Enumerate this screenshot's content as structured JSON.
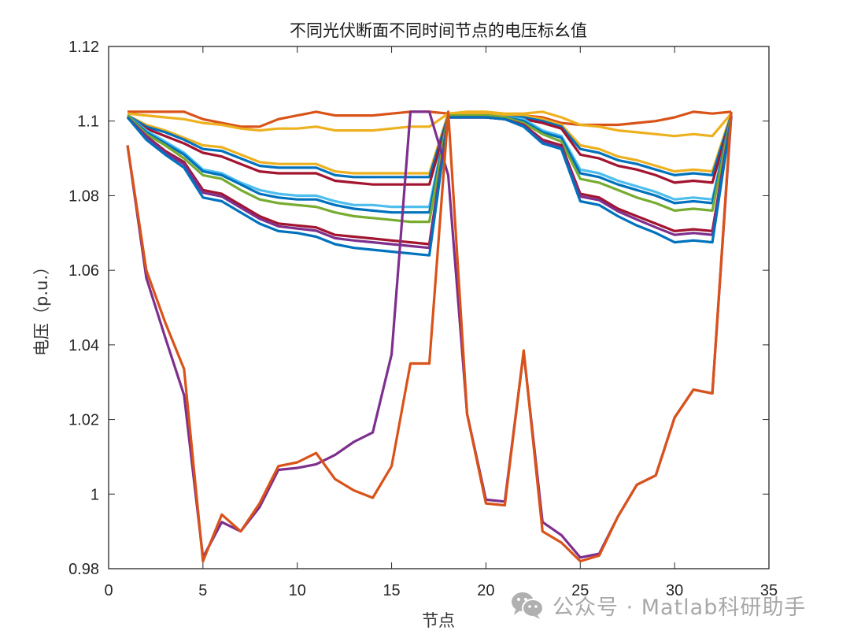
{
  "chart_data": {
    "type": "line",
    "title": "不同光伏断面不同时间节点的电压标幺值",
    "xlabel": "节点",
    "ylabel": "电压（p.u.）",
    "xlim": [
      0,
      35
    ],
    "ylim": [
      0.98,
      1.12
    ],
    "xticks": [
      0,
      5,
      10,
      15,
      20,
      25,
      30,
      35
    ],
    "xtick_labels": [
      "0",
      "5",
      "10",
      "15",
      "20",
      "25",
      "30",
      "35"
    ],
    "yticks": [
      0.98,
      1.0,
      1.02,
      1.04,
      1.06,
      1.08,
      1.1,
      1.12
    ],
    "ytick_labels": [
      "0.98",
      "1",
      "1.02",
      "1.04",
      "1.06",
      "1.08",
      "1.1",
      "1.12"
    ],
    "grid": false,
    "legend": null,
    "x": [
      1,
      2,
      3,
      4,
      5,
      6,
      7,
      8,
      9,
      10,
      11,
      12,
      13,
      14,
      15,
      16,
      17,
      18,
      19,
      20,
      21,
      22,
      23,
      24,
      25,
      26,
      27,
      28,
      29,
      30,
      31,
      32,
      33
    ],
    "series": [
      {
        "name": "upper-orange",
        "color": "#D95319",
        "values": [
          1.1025,
          1.1025,
          1.1025,
          1.1025,
          1.1005,
          1.0995,
          1.0985,
          1.0985,
          1.1005,
          1.1015,
          1.1025,
          1.1015,
          1.1015,
          1.1015,
          1.102,
          1.1025,
          1.1025,
          1.102,
          1.1015,
          1.101,
          1.1005,
          1.1015,
          1.101,
          1.0995,
          1.099,
          1.099,
          1.099,
          1.0995,
          1.1,
          1.101,
          1.1025,
          1.102,
          1.1025
        ]
      },
      {
        "name": "upper-yellow",
        "color": "#EDB120",
        "values": [
          1.102,
          1.1015,
          1.101,
          1.1005,
          1.0995,
          1.099,
          1.098,
          1.0975,
          1.098,
          1.098,
          1.0985,
          1.0975,
          1.0975,
          1.0975,
          1.098,
          1.0985,
          1.0985,
          1.102,
          1.1025,
          1.1025,
          1.102,
          1.102,
          1.1025,
          1.101,
          1.099,
          1.0985,
          1.0975,
          1.097,
          1.0965,
          1.096,
          1.0965,
          1.096,
          1.102
        ]
      },
      {
        "name": "band-1-yellow",
        "color": "#EDB120",
        "values": [
          1.1015,
          1.099,
          1.0975,
          1.0955,
          1.0935,
          1.093,
          1.091,
          1.089,
          1.0885,
          1.0885,
          1.0885,
          1.0865,
          1.086,
          1.086,
          1.086,
          1.086,
          1.086,
          1.102,
          1.102,
          1.102,
          1.1015,
          1.1015,
          1.1005,
          1.099,
          1.0935,
          1.0925,
          1.0905,
          1.0895,
          1.088,
          1.0865,
          1.087,
          1.0865,
          1.102
        ]
      },
      {
        "name": "band-1-blue",
        "color": "#0072BD",
        "values": [
          1.1015,
          1.0985,
          1.097,
          1.095,
          1.0925,
          1.092,
          1.09,
          1.088,
          1.0875,
          1.0875,
          1.0875,
          1.0855,
          1.085,
          1.085,
          1.085,
          1.085,
          1.085,
          1.1015,
          1.1015,
          1.1015,
          1.101,
          1.101,
          1.1,
          1.0985,
          1.0925,
          1.0915,
          1.0895,
          1.0885,
          1.087,
          1.0855,
          1.086,
          1.0855,
          1.1015
        ]
      },
      {
        "name": "band-1-red",
        "color": "#A2142F",
        "values": [
          1.101,
          1.098,
          1.096,
          1.094,
          1.0915,
          1.0905,
          1.0885,
          1.0865,
          1.086,
          1.086,
          1.086,
          1.084,
          1.0835,
          1.083,
          1.083,
          1.083,
          1.083,
          1.101,
          1.101,
          1.101,
          1.1005,
          1.1005,
          1.0995,
          1.098,
          1.091,
          1.09,
          1.088,
          1.087,
          1.0855,
          1.0835,
          1.084,
          1.0835,
          1.101
        ]
      },
      {
        "name": "band-2-lightblue",
        "color": "#4DBEEE",
        "values": [
          1.1015,
          1.0975,
          1.0945,
          1.0915,
          1.087,
          1.086,
          1.0835,
          1.0815,
          1.0805,
          1.08,
          1.08,
          1.0785,
          1.0775,
          1.0775,
          1.077,
          1.077,
          1.077,
          1.1015,
          1.1015,
          1.1015,
          1.101,
          1.1005,
          1.0975,
          1.096,
          1.087,
          1.086,
          1.084,
          1.0825,
          1.081,
          1.079,
          1.0795,
          1.079,
          1.1015
        ]
      },
      {
        "name": "band-2-blue",
        "color": "#0072BD",
        "values": [
          1.1015,
          1.097,
          1.094,
          1.091,
          1.0865,
          1.0855,
          1.083,
          1.0805,
          1.0795,
          1.079,
          1.079,
          1.0775,
          1.0765,
          1.076,
          1.0755,
          1.0755,
          1.0755,
          1.1015,
          1.1015,
          1.1015,
          1.101,
          1.1,
          1.097,
          1.0955,
          1.086,
          1.085,
          1.083,
          1.0815,
          1.08,
          1.078,
          1.0785,
          1.078,
          1.1015
        ]
      },
      {
        "name": "band-2-green",
        "color": "#77AC30",
        "values": [
          1.1015,
          1.0965,
          1.0935,
          1.09,
          1.0855,
          1.0845,
          1.0815,
          1.079,
          1.078,
          1.0775,
          1.077,
          1.0755,
          1.0745,
          1.074,
          1.0735,
          1.073,
          1.073,
          1.1015,
          1.1015,
          1.1015,
          1.101,
          1.0995,
          1.0965,
          1.0945,
          1.0845,
          1.0835,
          1.0815,
          1.0795,
          1.078,
          1.076,
          1.0765,
          1.076,
          1.1015
        ]
      },
      {
        "name": "band-3-red",
        "color": "#A2142F",
        "values": [
          1.101,
          1.096,
          1.092,
          1.089,
          1.0815,
          1.0805,
          1.0775,
          1.0745,
          1.0725,
          1.072,
          1.0715,
          1.0695,
          1.069,
          1.0685,
          1.068,
          1.0675,
          1.067,
          1.101,
          1.101,
          1.101,
          1.1005,
          1.099,
          1.095,
          1.0935,
          1.0805,
          1.0795,
          1.0765,
          1.0745,
          1.0725,
          1.0705,
          1.071,
          1.0705,
          1.101
        ]
      },
      {
        "name": "band-3-purple",
        "color": "#7E2F8E",
        "values": [
          1.101,
          1.0958,
          1.0916,
          1.0884,
          1.0808,
          1.0798,
          1.0768,
          1.0738,
          1.0718,
          1.0712,
          1.0706,
          1.0686,
          1.068,
          1.0675,
          1.067,
          1.0665,
          1.066,
          1.101,
          1.101,
          1.101,
          1.1005,
          1.0988,
          1.0945,
          1.093,
          1.0798,
          1.0788,
          1.0758,
          1.0736,
          1.0715,
          1.0695,
          1.07,
          1.0695,
          1.101
        ]
      },
      {
        "name": "band-3-blue",
        "color": "#0072BD",
        "values": [
          1.101,
          1.095,
          1.091,
          1.0875,
          1.0795,
          1.0785,
          1.0755,
          1.0725,
          1.0705,
          1.07,
          1.069,
          1.067,
          1.066,
          1.0655,
          1.065,
          1.0645,
          1.064,
          1.101,
          1.101,
          1.101,
          1.1005,
          1.0985,
          1.094,
          1.0925,
          1.0785,
          1.0775,
          1.0745,
          1.072,
          1.07,
          1.0675,
          1.068,
          1.0675,
          1.101
        ]
      },
      {
        "name": "lower-bundle",
        "color": "#7E2F8E",
        "values": [
          1.0935,
          1.058,
          1.042,
          1.0265,
          0.983,
          0.9925,
          0.99,
          0.9965,
          1.0065,
          1.007,
          1.008,
          1.0105,
          1.014,
          1.0165,
          1.0375,
          1.1025,
          1.1025,
          1.0855,
          1.0215,
          0.9985,
          0.998,
          1.038,
          0.9925,
          0.989,
          0.983,
          0.984,
          0.994,
          1.0025,
          1.005,
          1.0205,
          1.028,
          1.027,
          1.1015
        ]
      },
      {
        "name": "lower-orange-outlier",
        "color": "#D95319",
        "values": [
          1.0935,
          1.06,
          1.046,
          1.0335,
          0.982,
          0.9945,
          0.99,
          0.9975,
          1.0075,
          1.0085,
          1.011,
          1.004,
          1.001,
          0.999,
          1.0075,
          1.035,
          1.035,
          1.1025,
          1.0215,
          0.9975,
          0.997,
          1.0385,
          0.99,
          0.987,
          0.982,
          0.9835,
          0.994,
          1.0025,
          1.005,
          1.0205,
          1.028,
          1.027,
          1.1025
        ]
      }
    ]
  },
  "watermark": {
    "icon": "wechat-icon",
    "text": "公众号 · Matlab科研助手"
  }
}
